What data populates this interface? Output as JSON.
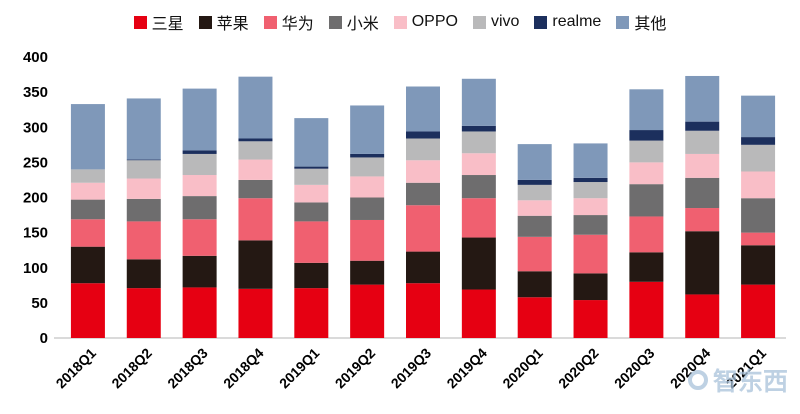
{
  "chart_data": {
    "type": "bar",
    "stacked": true,
    "title": "",
    "xlabel": "",
    "ylabel": "",
    "ylim": [
      0,
      400
    ],
    "y_ticks": [
      0,
      50,
      100,
      150,
      200,
      250,
      300,
      350,
      400
    ],
    "grid": false,
    "legend_position": "top",
    "categories": [
      "2018Q1",
      "2018Q2",
      "2018Q3",
      "2018Q4",
      "2019Q1",
      "2019Q2",
      "2019Q3",
      "2019Q4",
      "2020Q1",
      "2020Q2",
      "2020Q3",
      "2020Q4",
      "2021Q1"
    ],
    "series": [
      {
        "name": "三星",
        "color": "#e60012",
        "values": [
          78,
          71,
          72,
          70,
          71,
          76,
          78,
          69,
          58,
          54,
          80,
          62,
          76
        ]
      },
      {
        "name": "苹果",
        "color": "#241813",
        "values": [
          52,
          41,
          45,
          69,
          36,
          34,
          45,
          74,
          37,
          38,
          42,
          90,
          56
        ]
      },
      {
        "name": "华为",
        "color": "#f06070",
        "values": [
          39,
          54,
          52,
          60,
          59,
          58,
          66,
          56,
          49,
          55,
          51,
          33,
          18
        ]
      },
      {
        "name": "小米",
        "color": "#6e6d6e",
        "values": [
          28,
          32,
          33,
          26,
          27,
          32,
          32,
          33,
          30,
          28,
          46,
          43,
          49
        ]
      },
      {
        "name": "OPPO",
        "color": "#f9bec7",
        "values": [
          24,
          29,
          30,
          29,
          25,
          30,
          32,
          31,
          22,
          24,
          31,
          34,
          38
        ]
      },
      {
        "name": "vivo",
        "color": "#b9b9ba",
        "values": [
          19,
          26,
          30,
          26,
          23,
          27,
          31,
          31,
          22,
          23,
          31,
          33,
          38
        ]
      },
      {
        "name": "realme",
        "color": "#1c2f5d",
        "values": [
          0,
          1,
          5,
          4,
          3,
          5,
          10,
          8,
          7,
          6,
          15,
          13,
          11
        ]
      },
      {
        "name": "其他",
        "color": "#7f98b9",
        "values": [
          93,
          87,
          88,
          88,
          69,
          69,
          64,
          67,
          51,
          49,
          58,
          65,
          59
        ]
      }
    ]
  },
  "watermark": {
    "text": "智东西"
  }
}
